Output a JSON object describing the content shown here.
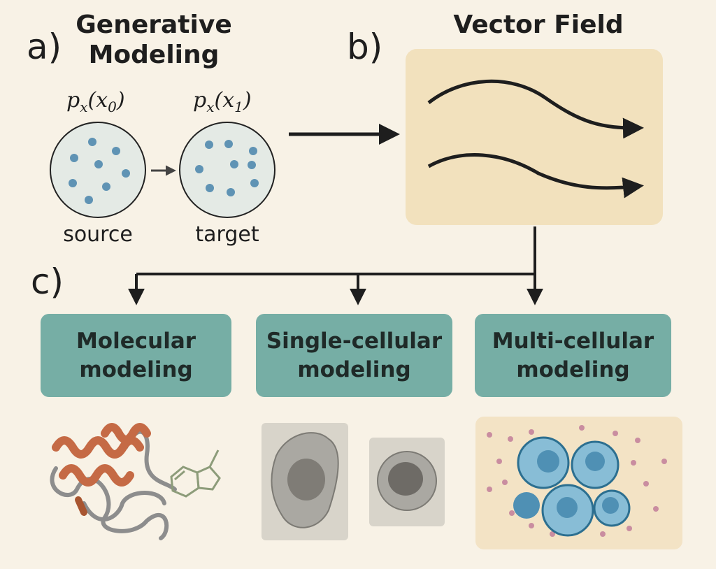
{
  "panel_a": {
    "letter": "a)",
    "title_line1": "Generative",
    "title_line2": "Modeling",
    "source_dist": "p",
    "source_sub": "x",
    "source_arg": "(x",
    "source_idx": "0",
    "source_close": ")",
    "target_dist": "p",
    "target_sub": "x",
    "target_arg": "(x",
    "target_idx": "1",
    "target_close": ")",
    "source_label": "source",
    "target_label": "target"
  },
  "panel_b": {
    "letter": "b)",
    "title": "Vector Field"
  },
  "panel_c": {
    "letter": "c)",
    "boxes": [
      {
        "line1": "Molecular",
        "line2": "modeling"
      },
      {
        "line1": "Single-cellular",
        "line2": "modeling"
      },
      {
        "line1": "Multi-cellular",
        "line2": "modeling"
      }
    ]
  },
  "colors": {
    "background": "#f8f2e6",
    "field_box": "#f2e1bd",
    "app_box": "#76aea5",
    "dot": "#5f93b4",
    "helix": "#c56a45",
    "cell": "#7fb6d2"
  },
  "icons": [
    "protein-ribbon-icon",
    "molecule-structure-icon",
    "cell-micrograph-icon",
    "tissue-cells-icon"
  ]
}
